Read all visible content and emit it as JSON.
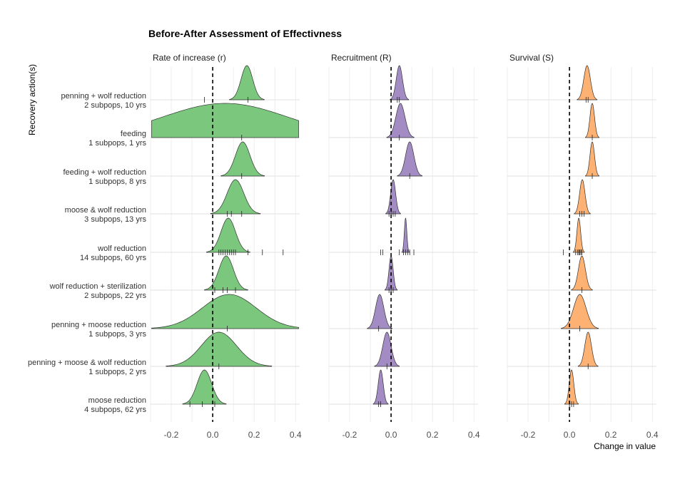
{
  "chart_data": {
    "type": "ridgeline",
    "title": "Before-After Assessment of Effectivness",
    "ylabel": "Recovery action(s)",
    "xlabel": "Change in value",
    "xlim": [
      -0.3,
      0.42
    ],
    "xticks": [
      -0.2,
      0.0,
      0.2,
      0.4
    ],
    "xtick_labels": [
      "-0.2",
      "0.0",
      "0.2",
      "0.4"
    ],
    "reference_line": 0,
    "grid": true,
    "categories": [
      {
        "label": "penning + wolf reduction",
        "sub": "2 subpops, 10 yrs"
      },
      {
        "label": "feeding",
        "sub": "1 subpops, 1 yrs"
      },
      {
        "label": "feeding + wolf reduction",
        "sub": "1 subpops, 8 yrs"
      },
      {
        "label": "moose & wolf reduction",
        "sub": "3 subpops, 13 yrs"
      },
      {
        "label": "wolf reduction",
        "sub": "14 subpops, 60 yrs"
      },
      {
        "label": "wolf reduction + sterilization",
        "sub": "2 subpops, 22 yrs"
      },
      {
        "label": "penning + moose reduction",
        "sub": "1 subpops, 3 yrs"
      },
      {
        "label": "penning + moose & wolf reduction",
        "sub": "1 subpops, 2 yrs"
      },
      {
        "label": "moose reduction",
        "sub": "4 subpops, 62 yrs"
      }
    ],
    "facets": [
      {
        "name": "Rate of increase (r)",
        "color": "#74c476",
        "distributions": [
          {
            "mean": 0.165,
            "sd": 0.028,
            "ticks": [
              -0.04,
              0.17
            ]
          },
          {
            "mean": 0.06,
            "sd": 0.3,
            "ticks": [
              0.14
            ]
          },
          {
            "mean": 0.145,
            "sd": 0.035,
            "ticks": [
              0.14
            ]
          },
          {
            "mean": 0.11,
            "sd": 0.04,
            "ticks": [
              0.07,
              0.09,
              0.14
            ]
          },
          {
            "mean": 0.075,
            "sd": 0.035,
            "ticks": [
              0.03,
              0.04,
              0.05,
              0.06,
              0.07,
              0.08,
              0.09,
              0.1,
              0.11,
              0.17,
              0.24,
              0.34
            ]
          },
          {
            "mean": 0.065,
            "sd": 0.035,
            "ticks": [
              0.01,
              0.05,
              0.07,
              0.11
            ]
          },
          {
            "mean": 0.08,
            "sd": 0.13,
            "ticks": [
              0.07
            ]
          },
          {
            "mean": 0.03,
            "sd": 0.085,
            "ticks": [
              0.03
            ]
          },
          {
            "mean": -0.04,
            "sd": 0.035,
            "ticks": [
              -0.11,
              -0.05,
              0.01
            ]
          }
        ]
      },
      {
        "name": "Recruitment (R)",
        "color": "#9e86c0",
        "distributions": [
          {
            "mean": 0.04,
            "sd": 0.015,
            "ticks": [
              0.03,
              0.04
            ]
          },
          {
            "mean": 0.045,
            "sd": 0.022,
            "ticks": [
              0.04
            ]
          },
          {
            "mean": 0.09,
            "sd": 0.02,
            "ticks": [
              0.09
            ]
          },
          {
            "mean": 0.01,
            "sd": 0.012,
            "ticks": [
              -0.01,
              0.0,
              0.01,
              0.02
            ]
          },
          {
            "mean": 0.07,
            "sd": 0.006,
            "ticks": [
              -0.05,
              -0.04,
              0.04,
              0.06,
              0.07,
              0.08,
              0.09,
              0.11
            ]
          },
          {
            "mean": 0.0,
            "sd": 0.01,
            "ticks": [
              -0.01,
              0.0,
              0.01
            ]
          },
          {
            "mean": -0.055,
            "sd": 0.02,
            "ticks": [
              -0.06,
              0.0
            ]
          },
          {
            "mean": -0.02,
            "sd": 0.02,
            "ticks": [
              -0.02
            ]
          },
          {
            "mean": -0.05,
            "sd": 0.012,
            "ticks": [
              -0.06,
              -0.05
            ]
          }
        ]
      },
      {
        "name": "Survival (S)",
        "color": "#fdae6b",
        "distributions": [
          {
            "mean": 0.085,
            "sd": 0.016,
            "ticks": [
              0.08,
              0.09
            ]
          },
          {
            "mean": 0.11,
            "sd": 0.011,
            "ticks": [
              0.11
            ]
          },
          {
            "mean": 0.11,
            "sd": 0.011,
            "ticks": [
              0.11
            ]
          },
          {
            "mean": 0.062,
            "sd": 0.013,
            "ticks": [
              0.05,
              0.06,
              0.07
            ]
          },
          {
            "mean": 0.045,
            "sd": 0.009,
            "ticks": [
              -0.03,
              0.03,
              0.04,
              0.045,
              0.05,
              0.055,
              0.06
            ]
          },
          {
            "mean": 0.06,
            "sd": 0.017,
            "ticks": [
              0.06
            ]
          },
          {
            "mean": 0.05,
            "sd": 0.03,
            "ticks": [
              0.05
            ]
          },
          {
            "mean": 0.09,
            "sd": 0.016,
            "ticks": [
              0.09
            ]
          },
          {
            "mean": 0.01,
            "sd": 0.011,
            "ticks": [
              0.0,
              0.01,
              0.02
            ]
          }
        ]
      }
    ]
  }
}
